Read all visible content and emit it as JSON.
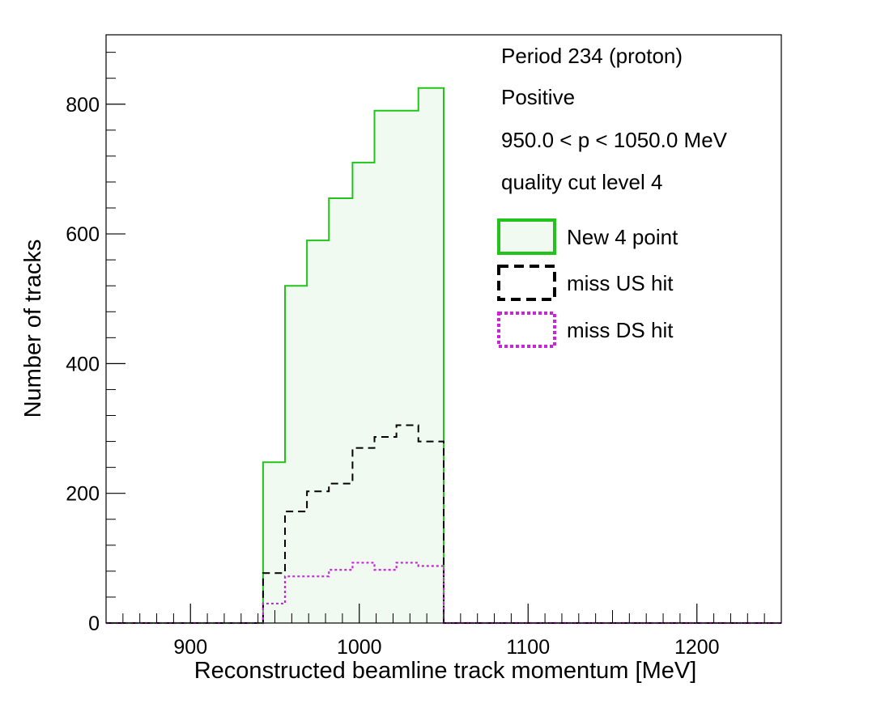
{
  "chart_data": {
    "type": "step-histogram",
    "xlabel": "Reconstructed beamline track momentum [MeV]",
    "ylabel": "Number of tracks",
    "xlim": [
      850,
      1250
    ],
    "ylim": [
      0,
      800
    ],
    "x_ticks": [
      900,
      1000,
      1100,
      1200
    ],
    "x_tick_labels": [
      "900",
      "1000",
      "1100",
      "1200"
    ],
    "y_ticks": [
      0,
      200,
      400,
      600,
      800
    ],
    "y_tick_labels": [
      "0",
      "200",
      "400",
      "600",
      "800"
    ],
    "bin_edges": [
      850,
      862.5,
      875,
      887.5,
      900,
      912.5,
      925,
      937.5,
      943,
      956,
      969,
      982,
      996,
      1009,
      1022,
      1035,
      1050,
      1062.5,
      1075,
      1087.5,
      1100,
      1112.5,
      1125,
      1137.5,
      1150,
      1162.5,
      1175,
      1187.5,
      1200,
      1212.5,
      1225,
      1237.5,
      1250
    ],
    "annotations": [
      "Period 234 (proton)",
      "Positive",
      "950.0 < p < 1050.0 MeV",
      "quality cut level 4"
    ],
    "legend_position": "top-right",
    "series": [
      {
        "name": "New 4 point",
        "color": "#22c41c",
        "fill": "#f1faf0",
        "style": "solid",
        "values": [
          0,
          0,
          0,
          0,
          0,
          0,
          0,
          0,
          248,
          520,
          590,
          655,
          710,
          790,
          790,
          825,
          0,
          0,
          0,
          0,
          0,
          0,
          0,
          0,
          0,
          0,
          0,
          0,
          0,
          0,
          0,
          0
        ]
      },
      {
        "name": "miss US hit",
        "color": "#000000",
        "fill": "none",
        "style": "dashed",
        "values": [
          0,
          0,
          0,
          0,
          0,
          0,
          0,
          0,
          77,
          172,
          203,
          215,
          270,
          287,
          305,
          280,
          0,
          0,
          0,
          0,
          0,
          0,
          0,
          0,
          0,
          0,
          0,
          0,
          0,
          0,
          0,
          0
        ]
      },
      {
        "name": "miss DS hit",
        "color": "#cc22dd",
        "fill": "none",
        "style": "dotted",
        "values": [
          0,
          0,
          0,
          0,
          0,
          0,
          0,
          0,
          30,
          72,
          72,
          82,
          93,
          82,
          93,
          88,
          0,
          0,
          0,
          0,
          0,
          0,
          0,
          0,
          0,
          0,
          0,
          0,
          0,
          0,
          0,
          0
        ]
      }
    ]
  }
}
